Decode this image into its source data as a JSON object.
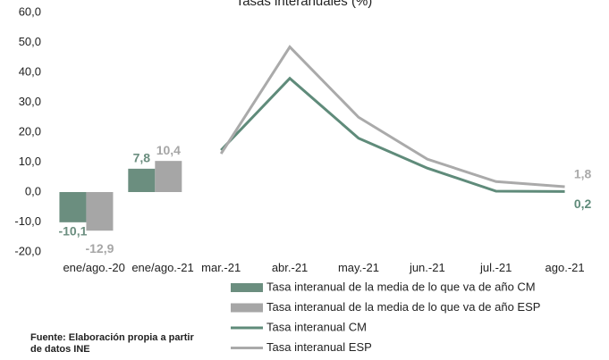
{
  "chart_data": {
    "type": "bar_line",
    "title": "Tasas interanuales (%)",
    "categories": [
      "ene/ago.-20",
      "ene/ago.-21",
      "mar.-21",
      "abr.-21",
      "may.-21",
      "jun.-21",
      "jul.-21",
      "ago.-21"
    ],
    "series": [
      {
        "name": "Tasa interanual de la media de lo que va de año CM",
        "kind": "bar",
        "color": "#6b8e7f",
        "values": [
          -10.1,
          7.8,
          null,
          null,
          null,
          null,
          null,
          null
        ],
        "value_labels": [
          "-10,1",
          "7,8",
          null,
          null,
          null,
          null,
          null,
          null
        ]
      },
      {
        "name": "Tasa interanual de la media de lo que va de año ESP",
        "kind": "bar",
        "color": "#a6a6a6",
        "values": [
          -12.9,
          10.4,
          null,
          null,
          null,
          null,
          null,
          null
        ],
        "value_labels": [
          "-12,9",
          "10,4",
          null,
          null,
          null,
          null,
          null,
          null
        ]
      },
      {
        "name": "Tasa interanual CM",
        "kind": "line",
        "color": "#5f8b7a",
        "values": [
          null,
          null,
          14,
          38,
          18,
          8,
          0.3,
          0.2
        ],
        "value_labels": [
          null,
          null,
          null,
          null,
          null,
          null,
          null,
          "0,2"
        ]
      },
      {
        "name": "Tasa interanual ESP",
        "kind": "line",
        "color": "#aaaaaa",
        "values": [
          null,
          null,
          12.8,
          48.5,
          25,
          11,
          3.5,
          1.8
        ],
        "value_labels": [
          null,
          null,
          null,
          null,
          null,
          null,
          null,
          "1,8"
        ]
      }
    ],
    "ylim": [
      -20,
      60
    ],
    "yticks": [
      {
        "value": -20,
        "label": "-20,0"
      },
      {
        "value": -10,
        "label": "-10,0"
      },
      {
        "value": 0,
        "label": "0,0"
      },
      {
        "value": 10,
        "label": "10,0"
      },
      {
        "value": 20,
        "label": "20,0"
      },
      {
        "value": 30,
        "label": "30,0"
      },
      {
        "value": 40,
        "label": "40,0"
      },
      {
        "value": 50,
        "label": "50,0"
      },
      {
        "value": 60,
        "label": "60,0"
      }
    ],
    "grid": false,
    "source": "Fuente: Elaboración propia a partir de datos INE"
  }
}
